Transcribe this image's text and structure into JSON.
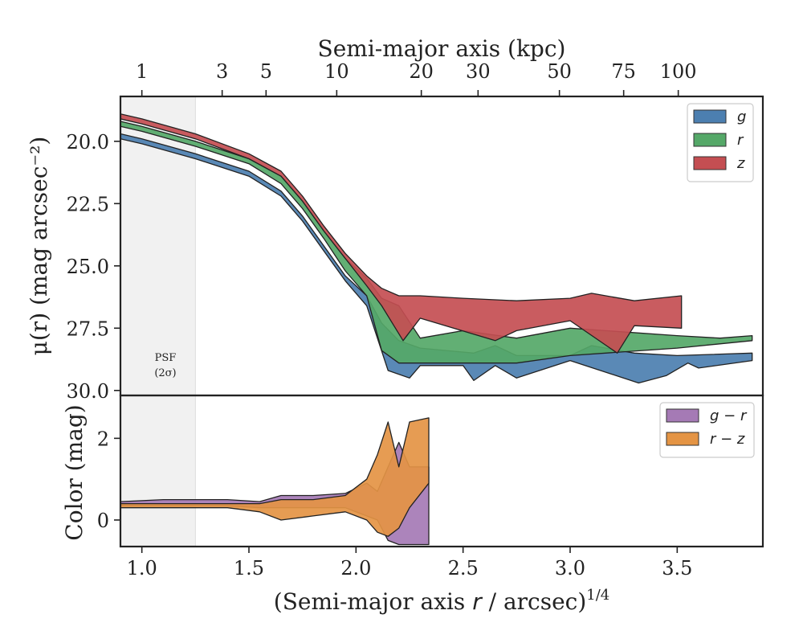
{
  "chart_data": {
    "type": "area",
    "top_axis": {
      "label": "Semi-major axis (kpc)",
      "ticks": [
        {
          "label": "1",
          "x": 1.0
        },
        {
          "label": "3",
          "x": 1.375
        },
        {
          "label": "5",
          "x": 1.58
        },
        {
          "label": "10",
          "x": 1.91
        },
        {
          "label": "20",
          "x": 2.305
        },
        {
          "label": "30",
          "x": 2.57
        },
        {
          "label": "50",
          "x": 2.95
        },
        {
          "label": "75",
          "x": 3.25
        },
        {
          "label": "100",
          "x": 3.505
        }
      ]
    },
    "x_axis": {
      "label_main": "(Semi-major axis ",
      "label_var": "r",
      "label_tail": " / arcsec)",
      "label_exp": "1/4",
      "lim": [
        0.9,
        3.9
      ],
      "ticks": [
        1.0,
        1.5,
        2.0,
        2.5,
        3.0,
        3.5
      ],
      "tick_labels": [
        "1.0",
        "1.5",
        "2.0",
        "2.5",
        "3.0",
        "3.5"
      ]
    },
    "psf": {
      "line1": "PSF",
      "line2": "(2σ)",
      "x_max": 1.25
    },
    "top_panel": {
      "ylabel": "μ(r) (mag arcsec⁻²)",
      "ylim": [
        30.2,
        18.2
      ],
      "yticks": [
        20.0,
        22.5,
        25.0,
        27.5,
        30.0
      ],
      "ytick_labels": [
        "20.0",
        "22.5",
        "25.0",
        "27.5",
        "30.0"
      ],
      "legend": [
        "g",
        "r",
        "z"
      ],
      "series": [
        {
          "name": "g",
          "color": "#4c7fb0",
          "upper": [
            [
              0.9,
              19.7
            ],
            [
              1.0,
              19.9
            ],
            [
              1.25,
              20.5
            ],
            [
              1.5,
              21.2
            ],
            [
              1.65,
              22.0
            ],
            [
              1.75,
              23.0
            ],
            [
              1.85,
              24.2
            ],
            [
              1.95,
              25.4
            ],
            [
              2.05,
              26.2
            ],
            [
              2.12,
              27.3
            ],
            [
              2.2,
              28.0
            ],
            [
              2.3,
              28.3
            ],
            [
              2.55,
              28.5
            ],
            [
              2.65,
              28.2
            ],
            [
              2.75,
              28.6
            ],
            [
              3.0,
              28.6
            ],
            [
              3.1,
              28.2
            ],
            [
              3.3,
              28.5
            ],
            [
              3.5,
              28.6
            ],
            [
              3.85,
              28.5
            ]
          ],
          "lower": [
            [
              3.85,
              28.8
            ],
            [
              3.6,
              29.1
            ],
            [
              3.55,
              28.9
            ],
            [
              3.45,
              29.4
            ],
            [
              3.32,
              29.7
            ],
            [
              3.0,
              28.8
            ],
            [
              2.75,
              29.5
            ],
            [
              2.65,
              29.0
            ],
            [
              2.55,
              29.6
            ],
            [
              2.5,
              29.0
            ],
            [
              2.3,
              29.0
            ],
            [
              2.25,
              29.5
            ],
            [
              2.15,
              29.2
            ],
            [
              2.05,
              26.6
            ],
            [
              1.95,
              25.6
            ],
            [
              1.85,
              24.4
            ],
            [
              1.75,
              23.2
            ],
            [
              1.65,
              22.2
            ],
            [
              1.5,
              21.4
            ],
            [
              1.25,
              20.7
            ],
            [
              1.0,
              20.1
            ],
            [
              0.9,
              19.9
            ]
          ]
        },
        {
          "name": "r",
          "color": "#55a868",
          "upper": [
            [
              0.9,
              19.2
            ],
            [
              1.0,
              19.4
            ],
            [
              1.25,
              20.0
            ],
            [
              1.5,
              20.7
            ],
            [
              1.65,
              21.4
            ],
            [
              1.75,
              22.4
            ],
            [
              1.85,
              23.6
            ],
            [
              1.95,
              24.7
            ],
            [
              2.05,
              25.5
            ],
            [
              2.12,
              26.3
            ],
            [
              2.2,
              26.6
            ],
            [
              2.3,
              27.9
            ],
            [
              2.5,
              27.6
            ],
            [
              2.75,
              27.9
            ],
            [
              3.0,
              27.5
            ],
            [
              3.5,
              27.8
            ],
            [
              3.7,
              27.9
            ],
            [
              3.85,
              27.8
            ]
          ],
          "lower": [
            [
              3.85,
              28.0
            ],
            [
              3.5,
              28.3
            ],
            [
              3.0,
              28.6
            ],
            [
              2.75,
              28.9
            ],
            [
              2.5,
              28.9
            ],
            [
              2.2,
              28.9
            ],
            [
              2.12,
              28.4
            ],
            [
              2.05,
              26.2
            ],
            [
              1.95,
              25.2
            ],
            [
              1.85,
              23.9
            ],
            [
              1.75,
              22.7
            ],
            [
              1.65,
              21.7
            ],
            [
              1.5,
              20.9
            ],
            [
              1.25,
              20.2
            ],
            [
              1.0,
              19.6
            ],
            [
              0.9,
              19.4
            ]
          ]
        },
        {
          "name": "z",
          "color": "#c44e52",
          "upper": [
            [
              0.9,
              18.9
            ],
            [
              1.0,
              19.1
            ],
            [
              1.25,
              19.7
            ],
            [
              1.5,
              20.5
            ],
            [
              1.65,
              21.2
            ],
            [
              1.75,
              22.2
            ],
            [
              1.85,
              23.4
            ],
            [
              1.95,
              24.5
            ],
            [
              2.05,
              25.4
            ],
            [
              2.12,
              25.9
            ],
            [
              2.2,
              26.2
            ],
            [
              2.3,
              26.2
            ],
            [
              2.5,
              26.3
            ],
            [
              2.75,
              26.4
            ],
            [
              3.0,
              26.3
            ],
            [
              3.1,
              26.1
            ],
            [
              3.3,
              26.4
            ],
            [
              3.52,
              26.2
            ]
          ],
          "lower": [
            [
              3.52,
              27.5
            ],
            [
              3.3,
              27.4
            ],
            [
              3.22,
              28.5
            ],
            [
              3.0,
              27.2
            ],
            [
              2.75,
              27.6
            ],
            [
              2.65,
              28.0
            ],
            [
              2.3,
              27.1
            ],
            [
              2.22,
              28.0
            ],
            [
              2.12,
              26.6
            ],
            [
              2.05,
              25.8
            ],
            [
              1.95,
              24.7
            ],
            [
              1.85,
              23.6
            ],
            [
              1.75,
              22.4
            ],
            [
              1.65,
              21.4
            ],
            [
              1.5,
              20.7
            ],
            [
              1.25,
              19.9
            ],
            [
              1.0,
              19.3
            ],
            [
              0.9,
              19.1
            ]
          ]
        }
      ]
    },
    "bottom_panel": {
      "ylabel": "Color (mag)",
      "ylim": [
        -0.65,
        3.05
      ],
      "yticks": [
        0,
        2
      ],
      "ytick_labels": [
        "0",
        "2"
      ],
      "legend": [
        "g − r",
        "r − z"
      ],
      "series": [
        {
          "name": "g − r",
          "color": "#a57ab5",
          "upper": [
            [
              0.9,
              0.45
            ],
            [
              1.1,
              0.5
            ],
            [
              1.4,
              0.5
            ],
            [
              1.55,
              0.45
            ],
            [
              1.65,
              0.6
            ],
            [
              1.8,
              0.6
            ],
            [
              1.95,
              0.65
            ],
            [
              2.05,
              0.9
            ],
            [
              2.1,
              0.7
            ],
            [
              2.15,
              1.3
            ],
            [
              2.2,
              1.9
            ],
            [
              2.25,
              1.3
            ],
            [
              2.34,
              1.3
            ]
          ],
          "lower": [
            [
              2.34,
              -0.6
            ],
            [
              2.25,
              -0.6
            ],
            [
              2.2,
              -0.6
            ],
            [
              2.15,
              -0.5
            ],
            [
              2.1,
              0.0
            ],
            [
              2.05,
              0.1
            ],
            [
              1.95,
              0.3
            ],
            [
              1.8,
              0.3
            ],
            [
              1.65,
              0.3
            ],
            [
              1.55,
              0.3
            ],
            [
              1.4,
              0.35
            ],
            [
              1.1,
              0.35
            ],
            [
              0.9,
              0.35
            ]
          ]
        },
        {
          "name": "r − z",
          "color": "#e49444",
          "upper": [
            [
              0.9,
              0.4
            ],
            [
              1.1,
              0.4
            ],
            [
              1.4,
              0.4
            ],
            [
              1.55,
              0.4
            ],
            [
              1.65,
              0.5
            ],
            [
              1.8,
              0.5
            ],
            [
              1.95,
              0.6
            ],
            [
              2.05,
              1.0
            ],
            [
              2.1,
              1.6
            ],
            [
              2.15,
              2.4
            ],
            [
              2.2,
              1.3
            ],
            [
              2.25,
              2.4
            ],
            [
              2.34,
              2.5
            ]
          ],
          "lower": [
            [
              2.34,
              0.9
            ],
            [
              2.25,
              0.3
            ],
            [
              2.2,
              -0.2
            ],
            [
              2.15,
              -0.4
            ],
            [
              2.1,
              -0.3
            ],
            [
              2.05,
              0.0
            ],
            [
              1.95,
              0.2
            ],
            [
              1.8,
              0.1
            ],
            [
              1.65,
              0.0
            ],
            [
              1.55,
              0.2
            ],
            [
              1.4,
              0.3
            ],
            [
              1.1,
              0.3
            ],
            [
              0.9,
              0.3
            ]
          ]
        }
      ]
    }
  }
}
